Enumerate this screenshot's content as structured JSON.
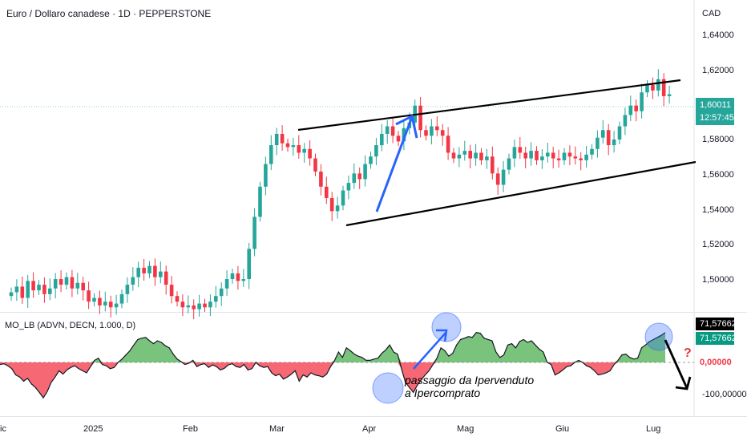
{
  "header": {
    "title": "Euro / Dollaro canadese · 1D · PEPPERSTONE",
    "currency": "CAD"
  },
  "indicator": {
    "title": "MO_LB (ADVN, DECN, 1.000, D)"
  },
  "y_axis": {
    "ticks": [
      "1,64000",
      "1,62000",
      "1,60000",
      "1,58000",
      "1,56000",
      "1,54000",
      "1,52000",
      "1,50000"
    ]
  },
  "x_axis": {
    "ticks": [
      "ic",
      "2025",
      "Feb",
      "Mar",
      "Apr",
      "Mag",
      "Giu",
      "Lug"
    ]
  },
  "last_price": {
    "value": "1,60011",
    "countdown": "12:57:45"
  },
  "indicator_values": {
    "top": "71,57662",
    "current": "71,57662",
    "zero": "0,00000",
    "low": "-100,00000"
  },
  "annotation": {
    "line1": "passaggio da Ipervenduto",
    "line2": "a Ipercomprato",
    "question": "?"
  },
  "colors": {
    "up": "#26a69a",
    "down": "#f23645",
    "area_up": "#4caf50",
    "area_down": "#f23645",
    "arrow": "#2962ff",
    "circle": "#7ea2ee"
  },
  "chart_data": {
    "type": "candlestick",
    "title": "Euro / Dollaro canadese · 1D · PEPPERSTONE",
    "ylim": [
      1.485,
      1.65
    ],
    "last": 1.60011,
    "month_labels": [
      "2025",
      "Feb",
      "Mar",
      "Apr",
      "Mag",
      "Giu",
      "Lug"
    ],
    "closes": [
      1.495,
      1.498,
      1.492,
      1.501,
      1.496,
      1.499,
      1.494,
      1.497,
      1.502,
      1.499,
      1.503,
      1.497,
      1.5,
      1.496,
      1.49,
      1.492,
      1.488,
      1.49,
      1.487,
      1.489,
      1.494,
      1.499,
      1.503,
      1.508,
      1.505,
      1.509,
      1.503,
      1.506,
      1.499,
      1.493,
      1.49,
      1.487,
      1.488,
      1.486,
      1.489,
      1.487,
      1.49,
      1.493,
      1.497,
      1.502,
      1.505,
      1.501,
      1.502,
      1.518,
      1.535,
      1.551,
      1.563,
      1.573,
      1.579,
      1.574,
      1.572,
      1.573,
      1.569,
      1.571,
      1.566,
      1.559,
      1.551,
      1.545,
      1.538,
      1.541,
      1.549,
      1.553,
      1.558,
      1.555,
      1.563,
      1.567,
      1.573,
      1.579,
      1.583,
      1.578,
      1.575,
      1.582,
      1.585,
      1.594,
      1.581,
      1.578,
      1.583,
      1.581,
      1.578,
      1.569,
      1.566,
      1.568,
      1.57,
      1.566,
      1.569,
      1.565,
      1.567,
      1.558,
      1.552,
      1.56,
      1.566,
      1.572,
      1.569,
      1.566,
      1.57,
      1.565,
      1.567,
      1.569,
      1.566,
      1.565,
      1.569,
      1.567,
      1.566,
      1.565,
      1.568,
      1.571,
      1.577,
      1.581,
      1.573,
      1.576,
      1.583,
      1.589,
      1.594,
      1.591,
      1.601,
      1.605,
      1.602,
      1.608,
      1.599,
      1.6
    ],
    "trendlines": [
      {
        "name": "upper-channel",
        "from": [
          1.5885,
          "Mar"
        ],
        "to": [
          1.6135,
          "Lug"
        ]
      },
      {
        "name": "lower-channel",
        "from": [
          1.5315,
          "Apr"
        ],
        "to": [
          1.5665,
          "Lug"
        ]
      }
    ],
    "indicator": {
      "name": "MO_LB (ADVN, DECN, 1.000, D)",
      "ylim": [
        -100,
        100
      ],
      "values": [
        -5,
        -3,
        -8,
        -15,
        -30,
        -35,
        -45,
        -38,
        -52,
        -60,
        -72,
        -85,
        -70,
        -48,
        -35,
        -20,
        -28,
        -18,
        -12,
        -8,
        -15,
        -20,
        -25,
        -10,
        5,
        10,
        -5,
        -8,
        -15,
        -12,
        0,
        8,
        18,
        28,
        42,
        55,
        58,
        60,
        52,
        45,
        52,
        48,
        40,
        35,
        20,
        8,
        2,
        -5,
        -2,
        5,
        -10,
        -5,
        -3,
        -12,
        -6,
        -10,
        -18,
        -14,
        -6,
        -3,
        -10,
        -12,
        -5,
        -18,
        -15,
        0,
        -8,
        -12,
        -10,
        -25,
        -32,
        -28,
        -40,
        -35,
        -28,
        -20,
        -45,
        -30,
        -35,
        -25,
        -30,
        -32,
        -35,
        -28,
        -10,
        5,
        25,
        12,
        35,
        28,
        20,
        15,
        12,
        5,
        5,
        8,
        10,
        22,
        30,
        42,
        25,
        20,
        -15,
        -48,
        -60,
        -72,
        -55,
        -42,
        -30,
        -20,
        -5,
        10,
        35,
        28,
        15,
        22,
        42,
        55,
        58,
        62,
        60,
        72,
        70,
        58,
        55,
        52,
        25,
        12,
        18,
        42,
        45,
        35,
        50,
        55,
        48,
        52,
        42,
        32,
        25,
        0,
        -5,
        -30,
        -25,
        -18,
        -10,
        -8,
        0,
        5,
        0,
        -8,
        -12,
        -20,
        -30,
        -28,
        -25,
        -20,
        -5,
        5,
        18,
        20,
        12,
        8,
        10,
        35,
        42,
        50,
        55,
        60,
        65,
        71.58
      ]
    }
  }
}
